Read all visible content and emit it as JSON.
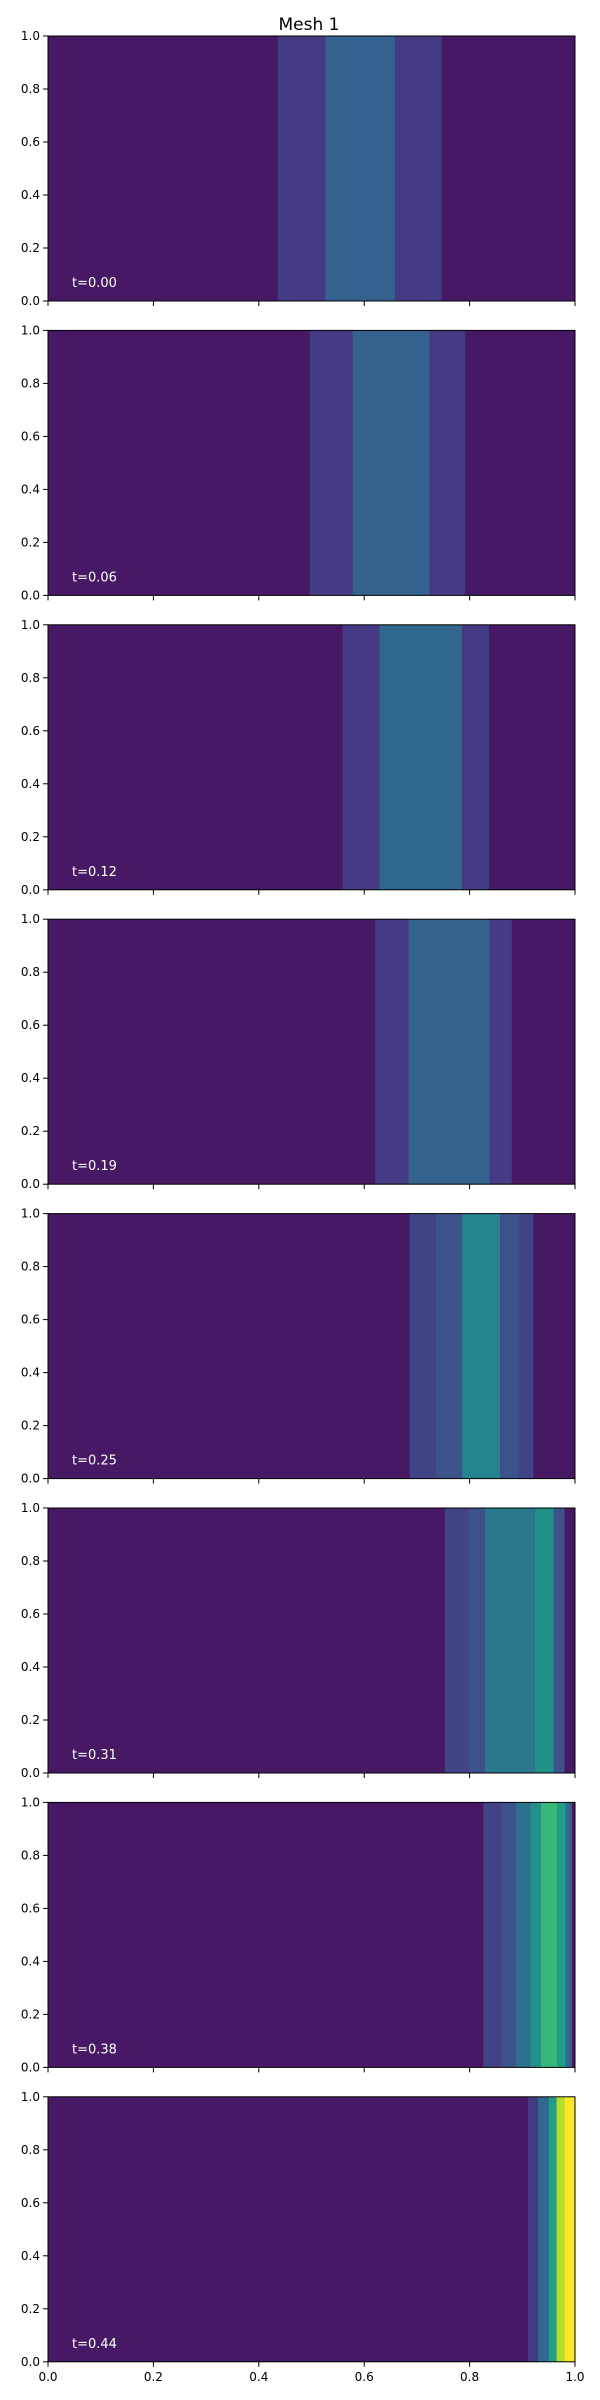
{
  "chart_data": {
    "type": "heatmap",
    "title": "Mesh 1",
    "xlim": [
      0,
      1
    ],
    "ylim": [
      0,
      1
    ],
    "xticks": [
      "0.0",
      "0.2",
      "0.4",
      "0.6",
      "0.8",
      "1.0"
    ],
    "yticks": [
      "0.0",
      "0.2",
      "0.4",
      "0.6",
      "0.8",
      "1.0"
    ],
    "colormap": "viridis",
    "background_color": "#471863",
    "panels": [
      {
        "label": "t=0.00",
        "bands": [
          {
            "x0": 0.436,
            "x1": 0.526,
            "color": "#443b84"
          },
          {
            "x0": 0.526,
            "x1": 0.659,
            "color": "#34618d"
          },
          {
            "x0": 0.659,
            "x1": 0.747,
            "color": "#443b84"
          }
        ]
      },
      {
        "label": "t=0.06",
        "bands": [
          {
            "x0": 0.497,
            "x1": 0.578,
            "color": "#443b84"
          },
          {
            "x0": 0.578,
            "x1": 0.724,
            "color": "#33628d"
          },
          {
            "x0": 0.724,
            "x1": 0.792,
            "color": "#443b84"
          }
        ]
      },
      {
        "label": "t=0.12",
        "bands": [
          {
            "x0": 0.559,
            "x1": 0.629,
            "color": "#443b84"
          },
          {
            "x0": 0.629,
            "x1": 0.786,
            "color": "#31678e"
          },
          {
            "x0": 0.786,
            "x1": 0.837,
            "color": "#443b84"
          }
        ]
      },
      {
        "label": "t=0.19",
        "bands": [
          {
            "x0": 0.621,
            "x1": 0.684,
            "color": "#443b84"
          },
          {
            "x0": 0.684,
            "x1": 0.838,
            "color": "#33638d"
          },
          {
            "x0": 0.838,
            "x1": 0.88,
            "color": "#443b84"
          }
        ]
      },
      {
        "label": "t=0.25",
        "bands": [
          {
            "x0": 0.686,
            "x1": 0.736,
            "color": "#414487"
          },
          {
            "x0": 0.736,
            "x1": 0.786,
            "color": "#3b528b"
          },
          {
            "x0": 0.786,
            "x1": 0.858,
            "color": "#25858e"
          },
          {
            "x0": 0.858,
            "x1": 0.895,
            "color": "#3b528b"
          },
          {
            "x0": 0.895,
            "x1": 0.921,
            "color": "#414487"
          }
        ]
      },
      {
        "label": "t=0.31",
        "bands": [
          {
            "x0": 0.753,
            "x1": 0.798,
            "color": "#414487"
          },
          {
            "x0": 0.798,
            "x1": 0.829,
            "color": "#3b528b"
          },
          {
            "x0": 0.829,
            "x1": 0.924,
            "color": "#2a788e"
          },
          {
            "x0": 0.924,
            "x1": 0.96,
            "color": "#21918c"
          },
          {
            "x0": 0.96,
            "x1": 0.98,
            "color": "#3b528b"
          }
        ]
      },
      {
        "label": "t=0.38",
        "bands": [
          {
            "x0": 0.826,
            "x1": 0.86,
            "color": "#414487"
          },
          {
            "x0": 0.86,
            "x1": 0.888,
            "color": "#3b528b"
          },
          {
            "x0": 0.888,
            "x1": 0.915,
            "color": "#2c728e"
          },
          {
            "x0": 0.915,
            "x1": 0.935,
            "color": "#21918c"
          },
          {
            "x0": 0.935,
            "x1": 0.966,
            "color": "#35b779"
          },
          {
            "x0": 0.966,
            "x1": 0.982,
            "color": "#1f9e89"
          },
          {
            "x0": 0.982,
            "x1": 0.994,
            "color": "#31688e"
          }
        ]
      },
      {
        "label": "t=0.44",
        "bands": [
          {
            "x0": 0.911,
            "x1": 0.93,
            "color": "#443983"
          },
          {
            "x0": 0.93,
            "x1": 0.95,
            "color": "#31688e"
          },
          {
            "x0": 0.95,
            "x1": 0.965,
            "color": "#1f9e89"
          },
          {
            "x0": 0.965,
            "x1": 0.98,
            "color": "#b5de2b"
          },
          {
            "x0": 0.98,
            "x1": 1.0,
            "color": "#fde725"
          }
        ]
      }
    ]
  }
}
